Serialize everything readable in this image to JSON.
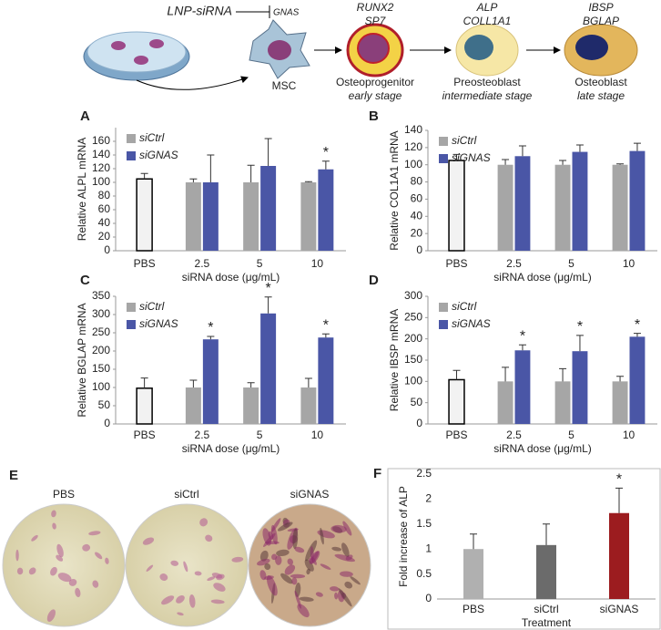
{
  "schematic": {
    "inhibitor": "LNP-siRNA",
    "target": "GNAS",
    "stages": [
      {
        "markers": [
          "RUNX2",
          "SP7"
        ],
        "name": "Osteoprogenitor",
        "stage": "early stage"
      },
      {
        "markers": [
          "ALP",
          "COLL1A1"
        ],
        "name": "Preosteoblast",
        "stage": "intermediate stage"
      },
      {
        "markers": [
          "IBSP",
          "BGLAP"
        ],
        "name": "Osteoblast",
        "stage": "late stage"
      }
    ],
    "cell": "MSC"
  },
  "panel_e": {
    "panel": "E",
    "images": [
      "PBS",
      "siCtrl",
      "siGNAS"
    ]
  },
  "chart_data": [
    {
      "type": "bar",
      "panel": "A",
      "ylabel": "Relative ALPL mRNA",
      "xlabel": "siRNA dose (μg/mL)",
      "categories": [
        "PBS",
        "2.5",
        "5",
        "10"
      ],
      "ylim": [
        0,
        180
      ],
      "yticks": [
        0,
        20,
        40,
        60,
        80,
        100,
        120,
        140,
        160
      ],
      "legend": "upper left",
      "series": [
        {
          "color": "#f2f2f2",
          "edgecolor": "#000000",
          "values": [
            105,
            null,
            null,
            null
          ],
          "errors": [
            8,
            null,
            null,
            null
          ]
        },
        {
          "name": "siCtrl",
          "color": "#a6a6a6",
          "values": [
            null,
            100,
            100,
            100
          ],
          "errors": [
            null,
            5,
            25,
            1
          ]
        },
        {
          "name": "siGNAS",
          "color": "#4a56a6",
          "values": [
            null,
            100,
            124,
            119
          ],
          "errors": [
            null,
            40,
            40,
            12
          ],
          "labels": [
            null,
            null,
            null,
            "*"
          ]
        }
      ]
    },
    {
      "type": "bar",
      "panel": "B",
      "ylabel": "Relative COL1A1 mRNA",
      "xlabel": "siRNA dose (μg/mL)",
      "categories": [
        "PBS",
        "2.5",
        "5",
        "10"
      ],
      "ylim": [
        0,
        140
      ],
      "yticks": [
        0,
        20,
        40,
        60,
        80,
        100,
        120,
        140
      ],
      "legend": "upper left",
      "series": [
        {
          "color": "#f2f2f2",
          "edgecolor": "#000000",
          "values": [
            105,
            null,
            null,
            null
          ],
          "errors": [
            7,
            null,
            null,
            null
          ]
        },
        {
          "name": "siCtrl",
          "color": "#a6a6a6",
          "values": [
            null,
            100,
            100,
            100
          ],
          "errors": [
            null,
            6,
            5,
            1
          ]
        },
        {
          "name": "siGNAS",
          "color": "#4a56a6",
          "values": [
            null,
            110,
            115,
            116
          ],
          "errors": [
            null,
            12,
            8,
            9
          ]
        }
      ]
    },
    {
      "type": "bar",
      "panel": "C",
      "ylabel": "Relative BGLAP mRNA",
      "xlabel": "siRNA dose (μg/mL)",
      "categories": [
        "PBS",
        "2.5",
        "5",
        "10"
      ],
      "ylim": [
        0,
        350
      ],
      "yticks": [
        0,
        50,
        100,
        150,
        200,
        250,
        300,
        350
      ],
      "legend": "upper left",
      "series": [
        {
          "color": "#f2f2f2",
          "edgecolor": "#000000",
          "values": [
            98,
            null,
            null,
            null
          ],
          "errors": [
            28,
            null,
            null,
            null
          ]
        },
        {
          "name": "siCtrl",
          "color": "#a6a6a6",
          "values": [
            null,
            100,
            100,
            100
          ],
          "errors": [
            null,
            20,
            13,
            25
          ]
        },
        {
          "name": "siGNAS",
          "color": "#4a56a6",
          "values": [
            null,
            232,
            303,
            237
          ],
          "errors": [
            null,
            8,
            45,
            10
          ],
          "labels": [
            null,
            "*",
            "*",
            "*"
          ]
        }
      ]
    },
    {
      "type": "bar",
      "panel": "D",
      "ylabel": "Relative IBSP mRNA",
      "xlabel": "siRNA dose (μg/mL)",
      "categories": [
        "PBS",
        "2.5",
        "5",
        "10"
      ],
      "ylim": [
        0,
        300
      ],
      "yticks": [
        0,
        50,
        100,
        150,
        200,
        250,
        300
      ],
      "legend": "upper left",
      "series": [
        {
          "color": "#f2f2f2",
          "edgecolor": "#000000",
          "values": [
            104,
            null,
            null,
            null
          ],
          "errors": [
            22,
            null,
            null,
            null
          ]
        },
        {
          "name": "siCtrl",
          "color": "#a6a6a6",
          "values": [
            null,
            100,
            100,
            100
          ],
          "errors": [
            null,
            33,
            30,
            12
          ]
        },
        {
          "name": "siGNAS",
          "color": "#4a56a6",
          "values": [
            null,
            173,
            171,
            205
          ],
          "errors": [
            null,
            13,
            37,
            8
          ],
          "labels": [
            null,
            "*",
            "*",
            "*"
          ]
        }
      ]
    },
    {
      "type": "bar",
      "panel": "F",
      "ylabel": "Fold increase of ALP",
      "xlabel": "Treatment",
      "categories": [
        "PBS",
        "siCtrl",
        "siGNAS"
      ],
      "ylim": [
        0,
        2.5
      ],
      "yticks": [
        0,
        0.5,
        1,
        1.5,
        2,
        2.5
      ],
      "series": [
        {
          "colors": [
            "#b0b0b0",
            "#6b6b6b",
            "#9c1c1f"
          ],
          "values": [
            1.0,
            1.08,
            1.72
          ],
          "errors": [
            0.3,
            0.42,
            0.5
          ],
          "labels": [
            null,
            null,
            "*"
          ]
        }
      ]
    }
  ]
}
